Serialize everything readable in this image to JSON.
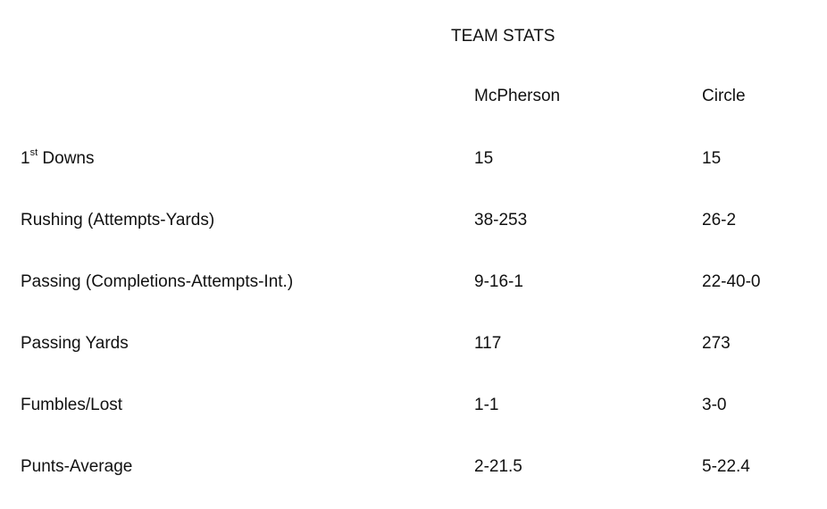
{
  "title": "TEAM STATS",
  "columns": [
    "",
    "McPherson",
    "Circle"
  ],
  "rows": [
    {
      "label": "1",
      "label_sup": "st",
      "label_rest": " Downs",
      "mcpherson": "15",
      "circle": "15"
    },
    {
      "label": "Rushing (Attempts-Yards)",
      "mcpherson": "38-253",
      "circle": "26-2"
    },
    {
      "label": "Passing (Completions-Attempts-Int.)",
      "mcpherson": "9-16-1",
      "circle": "22-40-0"
    },
    {
      "label": "Passing Yards",
      "mcpherson": "117",
      "circle": "273"
    },
    {
      "label": "Fumbles/Lost",
      "mcpherson": "1-1",
      "circle": "3-0"
    },
    {
      "label": "Punts-Average",
      "mcpherson": "2-21.5",
      "circle": "5-22.4"
    }
  ]
}
